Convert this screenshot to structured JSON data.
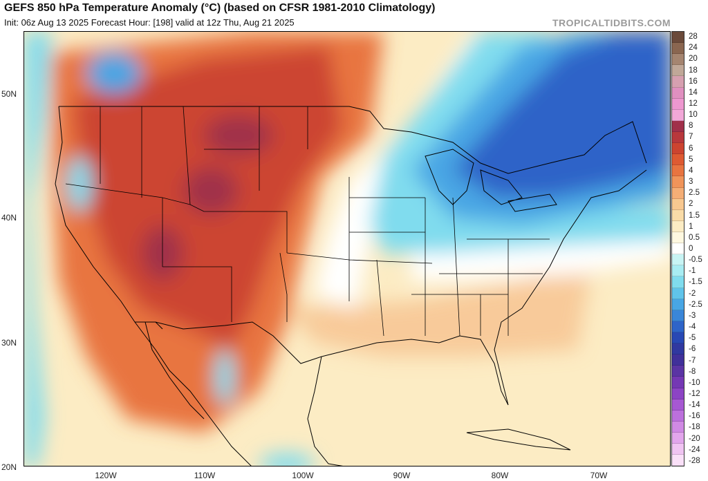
{
  "header": {
    "title": "GEFS 850 hPa Temperature Anomaly (°C) (based on CFSR 1981-2010 Climatology)",
    "subtitle": "Init: 06z Aug 13 2025   Forecast Hour: [198]   valid at 12z Thu, Aug 21 2025",
    "brand": "TROPICALTIDBITS.COM"
  },
  "axes": {
    "lat_labels": [
      "50N",
      "40N",
      "30N",
      "20N"
    ],
    "lon_labels": [
      "120W",
      "110W",
      "100W",
      "90W",
      "80W",
      "70W"
    ]
  },
  "colorbar": {
    "labels": [
      "28",
      "24",
      "20",
      "18",
      "16",
      "14",
      "12",
      "10",
      "8",
      "7",
      "6",
      "5",
      "4",
      "3",
      "2.5",
      "2",
      "1.5",
      "1",
      "0.5",
      "0",
      "-0.5",
      "-1",
      "-1.5",
      "-2",
      "-2.5",
      "-3",
      "-4",
      "-5",
      "-6",
      "-7",
      "-8",
      "-10",
      "-12",
      "-14",
      "-16",
      "-18",
      "-20",
      "-24",
      "-28"
    ],
    "colors": [
      "#6b4a3a",
      "#8a6650",
      "#a58570",
      "#c0a898",
      "#d6a0b0",
      "#e090c0",
      "#ee98d0",
      "#f2a8d8",
      "#a0304a",
      "#b8383c",
      "#cc4430",
      "#de5a32",
      "#e87440",
      "#f0945a",
      "#f4ae76",
      "#f8c890",
      "#fadca8",
      "#fcecc4",
      "#fff8e0",
      "#ffffff",
      "#c8f4f4",
      "#a8ecf2",
      "#80dcee",
      "#60c4ea",
      "#48a6e4",
      "#3a86d8",
      "#2e64c8",
      "#2848b4",
      "#3038a0",
      "#40309a",
      "#5a34a4",
      "#7438b4",
      "#8c44c4",
      "#a658d2",
      "#bc70dc",
      "#d08ae4",
      "#e2a6ec",
      "#f0c4f2",
      "#fae0f8"
    ]
  },
  "colors": {
    "cold_core": "#2e64c8",
    "cold_mid": "#48a6e4",
    "cool": "#80dcee",
    "neutral": "#ffffff",
    "warm_light": "#fcecc4",
    "warm_mid": "#f4ae76",
    "warm": "#e87440",
    "hot": "#cc4430",
    "hottest": "#a0304a"
  }
}
